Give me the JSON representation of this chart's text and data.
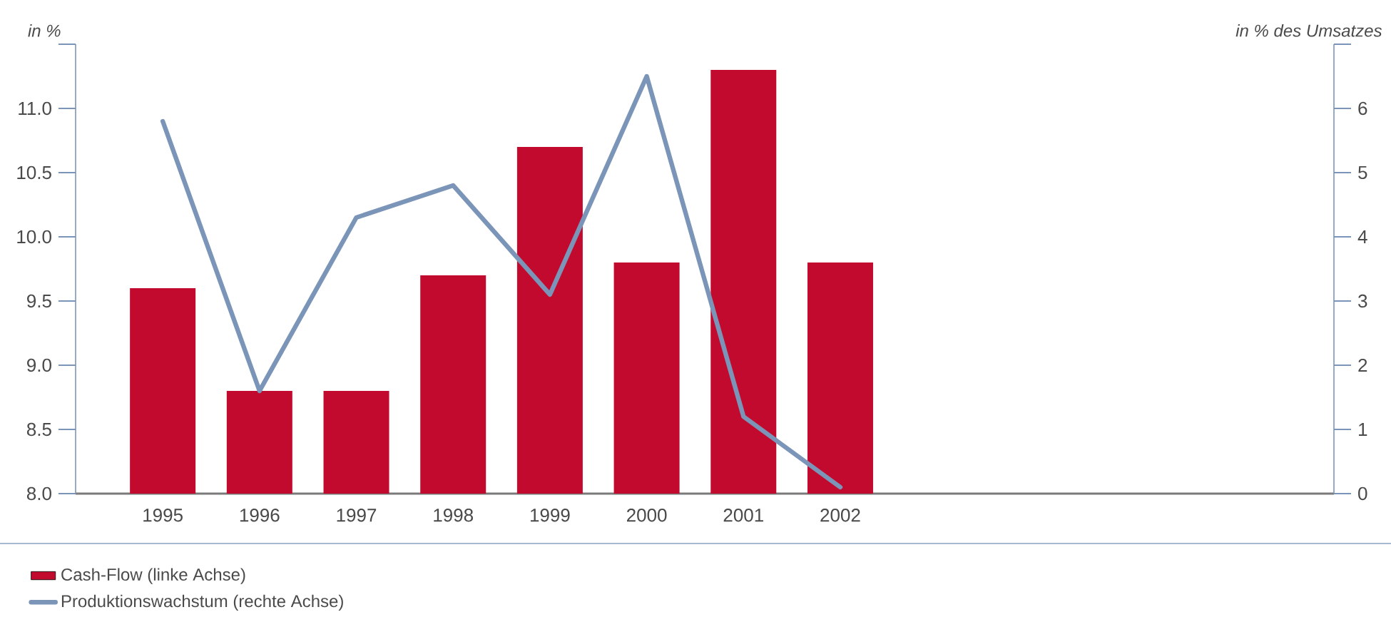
{
  "chart_data": {
    "type": "bar",
    "ylabel": "in %",
    "y2label": "in % des Umsatzes",
    "categories": [
      "1995",
      "1996",
      "1997",
      "1998",
      "1999",
      "2000",
      "2001",
      "2002",
      null,
      null,
      null,
      null,
      null
    ],
    "series": [
      {
        "name": "Cash-Flow (linke Achse)",
        "color": "#c20a2e",
        "values": [
          9.6,
          8.8,
          8.8,
          9.7,
          10.7,
          9.8,
          11.3,
          9.8,
          null,
          null,
          null,
          null,
          null
        ]
      },
      {
        "name": "Produktionswachstum (rechte Achse)",
        "type": "line",
        "axis": "y2",
        "color": "#7b95b8",
        "values": [
          5.8,
          1.6,
          4.3,
          4.8,
          3.1,
          6.5,
          1.2,
          0.1,
          null,
          null,
          null,
          null,
          null
        ]
      }
    ],
    "ylim": [
      8,
      11.5
    ],
    "yticks": [
      {
        "value": 8,
        "label": "8.0"
      },
      {
        "value": 8.5,
        "label": "8.5"
      },
      {
        "value": 9,
        "label": "9.0"
      },
      {
        "value": 9.5,
        "label": "9.5"
      },
      {
        "value": 10,
        "label": "10.0"
      },
      {
        "value": 10.5,
        "label": "10.5"
      },
      {
        "value": 11,
        "label": "11.0"
      },
      {
        "value": 11.5,
        "label": null
      }
    ],
    "y2lim": [
      0,
      7
    ],
    "y2ticks": [
      0,
      1,
      2,
      3,
      4,
      5,
      6,
      {
        "value": 7,
        "label": null
      }
    ],
    "legend": "bottom left"
  }
}
